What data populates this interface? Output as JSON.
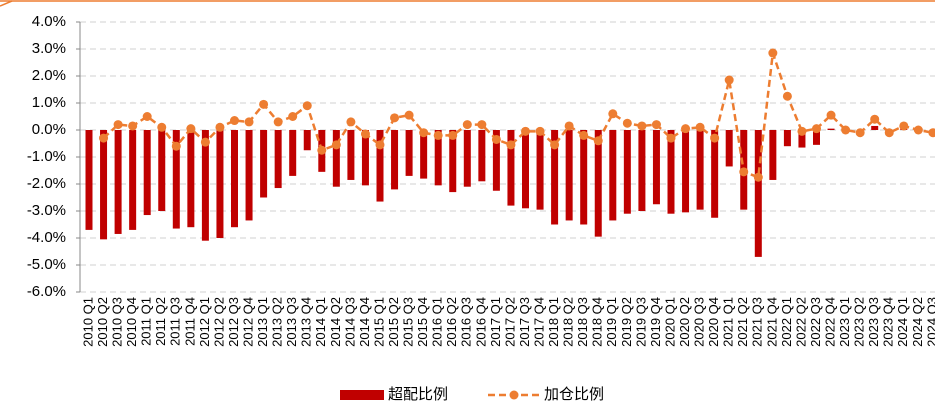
{
  "chart_data": {
    "type": "bar-line",
    "categories": [
      "2010 Q1",
      "2010 Q2",
      "2010 Q3",
      "2010 Q4",
      "2011 Q1",
      "2011 Q2",
      "2011 Q3",
      "2011 Q4",
      "2012 Q1",
      "2012 Q2",
      "2012 Q3",
      "2012 Q4",
      "2013 Q1",
      "2013 Q2",
      "2013 Q3",
      "2013 Q4",
      "2014 Q1",
      "2014 Q2",
      "2014 Q3",
      "2014 Q4",
      "2015 Q1",
      "2015 Q2",
      "2015 Q3",
      "2015 Q4",
      "2016 Q1",
      "2016 Q2",
      "2016 Q3",
      "2016 Q4",
      "2017 Q1",
      "2017 Q2",
      "2017 Q3",
      "2017 Q4",
      "2018 Q1",
      "2018 Q2",
      "2018 Q3",
      "2018 Q4",
      "2019 Q1",
      "2019 Q2",
      "2019 Q3",
      "2019 Q4",
      "2020 Q1",
      "2020 Q2",
      "2020 Q3",
      "2020 Q4",
      "2021 Q1",
      "2021 Q2",
      "2021 Q3",
      "2021 Q4",
      "2022 Q1",
      "2022 Q2",
      "2022 Q3",
      "2022 Q4",
      "2023 Q1",
      "2023 Q2",
      "2023 Q3",
      "2023 Q4",
      "2024 Q1",
      "2024 Q2",
      "2024 Q3"
    ],
    "series": [
      {
        "name": "超配比例",
        "type": "bar",
        "color": "#c00000",
        "values": [
          -3.7,
          -4.05,
          -3.85,
          -3.7,
          -3.15,
          -3.0,
          -3.65,
          -3.6,
          -4.1,
          -4.0,
          -3.6,
          -3.35,
          -2.5,
          -2.15,
          -1.7,
          -0.75,
          -1.55,
          -2.1,
          -1.85,
          -2.05,
          -2.65,
          -2.2,
          -1.7,
          -1.8,
          -2.05,
          -2.3,
          -2.1,
          -1.9,
          -2.25,
          -2.8,
          -2.9,
          -2.95,
          -3.5,
          -3.35,
          -3.5,
          -3.95,
          -3.35,
          -3.1,
          -3.0,
          -2.75,
          -3.1,
          -3.05,
          -2.95,
          -3.25,
          -1.35,
          -2.95,
          -4.7,
          -1.85,
          -0.6,
          -0.65,
          -0.55,
          0.05,
          0.0,
          -0.05,
          0.15,
          -0.05,
          0.15,
          0.0,
          -0.1
        ]
      },
      {
        "name": "加仓比例",
        "type": "line",
        "color": "#ed7d31",
        "values": [
          null,
          -0.3,
          0.2,
          0.15,
          0.5,
          0.1,
          -0.6,
          0.05,
          -0.45,
          0.1,
          0.35,
          0.3,
          0.95,
          0.3,
          0.5,
          0.9,
          -0.75,
          -0.55,
          0.3,
          -0.15,
          -0.55,
          0.45,
          0.55,
          -0.1,
          -0.2,
          -0.2,
          0.2,
          0.2,
          -0.35,
          -0.55,
          -0.05,
          -0.05,
          -0.55,
          0.15,
          -0.2,
          -0.4,
          0.6,
          0.25,
          0.15,
          0.2,
          -0.3,
          0.05,
          0.1,
          -0.3,
          1.85,
          -1.55,
          -1.75,
          2.85,
          1.25,
          -0.05,
          0.05,
          0.55,
          0.0,
          -0.1,
          0.4,
          -0.1,
          0.15,
          0.0,
          -0.1
        ]
      }
    ],
    "ylim": [
      -6,
      4
    ],
    "yticks": [
      {
        "value": -6,
        "label": "-6.0%"
      },
      {
        "value": -5,
        "label": "-5.0%"
      },
      {
        "value": -4,
        "label": "-4.0%"
      },
      {
        "value": -3,
        "label": "-3.0%"
      },
      {
        "value": -2,
        "label": "-2.0%"
      },
      {
        "value": -1,
        "label": "-1.0%"
      },
      {
        "value": 0,
        "label": "0.0%"
      },
      {
        "value": 1,
        "label": "1.0%"
      },
      {
        "value": 2,
        "label": "2.0%"
      },
      {
        "value": 3,
        "label": "3.0%"
      },
      {
        "value": 4,
        "label": "4.0%"
      }
    ],
    "grid": true,
    "legend": "bottom"
  }
}
